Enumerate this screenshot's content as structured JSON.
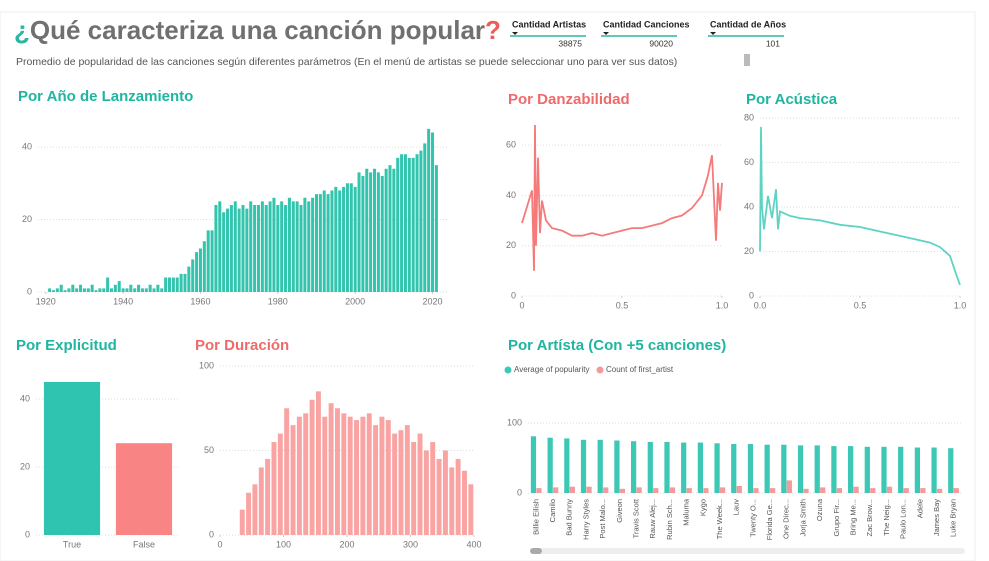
{
  "header": {
    "title_open": "¿",
    "title": "Qué caracteriza una canción popular",
    "title_close": "?",
    "subtitle": "Promedio de popularidad de las canciones según diferentes parámetros (En el menú de artistas se puede seleccionar uno para ver sus datos)"
  },
  "kpis": [
    {
      "label": "Cantidad Artistas",
      "value": 38875
    },
    {
      "label": "Cantidad Canciones",
      "value": 90020
    },
    {
      "label": "Cantidad de Años",
      "value": 101
    }
  ],
  "chart_data": [
    {
      "type": "bar",
      "title": "Por Año de Lanzamiento",
      "title_color": "#1fb5a0",
      "color": "#33c4ae",
      "grid": true,
      "x": [
        1921,
        1922,
        1923,
        1924,
        1925,
        1926,
        1927,
        1928,
        1929,
        1930,
        1931,
        1932,
        1933,
        1934,
        1935,
        1936,
        1937,
        1938,
        1939,
        1940,
        1941,
        1942,
        1943,
        1944,
        1945,
        1946,
        1947,
        1948,
        1949,
        1950,
        1951,
        1952,
        1953,
        1954,
        1955,
        1956,
        1957,
        1958,
        1959,
        1960,
        1961,
        1962,
        1963,
        1964,
        1965,
        1966,
        1967,
        1968,
        1969,
        1970,
        1971,
        1972,
        1973,
        1974,
        1975,
        1976,
        1977,
        1978,
        1979,
        1980,
        1981,
        1982,
        1983,
        1984,
        1985,
        1986,
        1987,
        1988,
        1989,
        1990,
        1991,
        1992,
        1993,
        1994,
        1995,
        1996,
        1997,
        1998,
        1999,
        2000,
        2001,
        2002,
        2003,
        2004,
        2005,
        2006,
        2007,
        2008,
        2009,
        2010,
        2011,
        2012,
        2013,
        2014,
        2015,
        2016,
        2017,
        2018,
        2019,
        2020,
        2021
      ],
      "values": [
        1,
        0.5,
        1,
        2,
        0.5,
        1,
        2,
        1,
        2,
        1,
        1,
        2,
        0.5,
        1,
        1,
        4,
        1,
        2,
        3,
        1,
        1,
        2,
        1,
        2,
        1,
        1,
        2,
        1,
        2,
        1,
        4,
        4,
        4,
        4,
        5,
        5,
        7,
        9,
        11,
        12,
        14,
        17,
        17,
        24,
        25,
        22,
        23,
        24,
        25,
        23,
        24,
        23,
        25,
        24,
        24,
        25,
        24,
        25,
        26,
        24,
        25,
        24,
        26,
        25,
        25,
        24,
        26,
        25,
        26,
        27,
        27,
        28,
        27,
        28,
        29,
        28,
        29,
        30,
        30,
        29,
        33,
        32,
        34,
        33,
        34,
        33,
        32,
        34,
        35,
        34,
        37,
        38,
        38,
        37,
        37,
        38,
        39,
        41,
        45,
        44,
        35
      ],
      "xlim": [
        1918,
        2024
      ],
      "xticks": [
        1920,
        1940,
        1960,
        1980,
        2000,
        2020
      ],
      "ylim": [
        0,
        48
      ],
      "yticks": [
        0,
        20,
        40
      ]
    },
    {
      "type": "line",
      "title": "Por Danzabilidad",
      "title_color": "#ef6a6a",
      "color": "#f57a7a",
      "grid": true,
      "x": [
        0,
        0.05,
        0.06,
        0.065,
        0.07,
        0.08,
        0.09,
        0.1,
        0.12,
        0.15,
        0.2,
        0.25,
        0.3,
        0.35,
        0.4,
        0.45,
        0.5,
        0.55,
        0.6,
        0.65,
        0.7,
        0.75,
        0.8,
        0.85,
        0.9,
        0.93,
        0.95,
        0.97,
        0.98,
        0.99,
        1
      ],
      "values": [
        29,
        42,
        10,
        68,
        20,
        55,
        25,
        38,
        30,
        27,
        26,
        24,
        24,
        25,
        24,
        25,
        26,
        27,
        27,
        28,
        29,
        31,
        32,
        35,
        40,
        48,
        56,
        22,
        45,
        34,
        45
      ],
      "xlim": [
        0,
        1
      ],
      "xticks": [
        0,
        0.5,
        {
          "value": 1,
          "label": "1.0"
        }
      ],
      "ylim": [
        0,
        70
      ],
      "yticks": [
        0,
        20,
        40,
        60
      ]
    },
    {
      "type": "line",
      "title": "Por Acústica",
      "title_color": "#1fb5a0",
      "color": "#5fd3c3",
      "grid": true,
      "x": [
        0,
        0.005,
        0.01,
        0.02,
        0.04,
        0.06,
        0.08,
        0.09,
        0.1,
        0.15,
        0.2,
        0.3,
        0.4,
        0.5,
        0.6,
        0.7,
        0.8,
        0.85,
        0.9,
        0.95,
        0.98,
        1
      ],
      "values": [
        20,
        76,
        40,
        30,
        45,
        35,
        48,
        30,
        38,
        36,
        35,
        34,
        32,
        31,
        29,
        27,
        25,
        24,
        22,
        18,
        10,
        5
      ],
      "xlim": [
        0,
        1
      ],
      "xticks": [
        {
          "value": 0,
          "label": "0.0"
        },
        0.5,
        {
          "value": 1,
          "label": "1.0"
        }
      ],
      "ylim": [
        0,
        80
      ],
      "yticks": [
        0,
        20,
        40,
        60,
        80
      ]
    },
    {
      "type": "bar",
      "title": "Por Explicitud",
      "title_color": "#1fb5a0",
      "colors": [
        "#2ec4b0",
        "#f88484"
      ],
      "grid": true,
      "categories": [
        "True",
        "False"
      ],
      "values": [
        45,
        27
      ],
      "ylim": [
        0,
        50
      ],
      "yticks": [
        0,
        20,
        40
      ]
    },
    {
      "type": "bar",
      "title": "Por Duración",
      "title_color": "#ef6a6a",
      "color": "#f9a3a3",
      "grid": true,
      "x": [
        35,
        45,
        55,
        65,
        75,
        85,
        95,
        105,
        115,
        125,
        135,
        145,
        155,
        165,
        175,
        185,
        195,
        205,
        215,
        225,
        235,
        245,
        255,
        265,
        275,
        285,
        295,
        305,
        315,
        325,
        335,
        345,
        355,
        365,
        375,
        385,
        395
      ],
      "values": [
        15,
        25,
        30,
        40,
        45,
        55,
        60,
        75,
        65,
        70,
        72,
        80,
        85,
        70,
        78,
        75,
        72,
        70,
        68,
        70,
        72,
        65,
        70,
        68,
        60,
        62,
        65,
        55,
        60,
        50,
        55,
        45,
        50,
        40,
        45,
        38,
        30
      ],
      "xlim": [
        0,
        400
      ],
      "xticks": [
        0,
        100,
        200,
        300,
        400
      ],
      "ylim": [
        0,
        100
      ],
      "yticks": [
        0,
        50,
        100
      ]
    },
    {
      "type": "bar",
      "title": "Por Artísta (Con +5 canciones)",
      "title_color": "#1fb5a0",
      "grid": true,
      "categories": [
        "Billie Eilish",
        "Camilo",
        "Bad Bunny",
        "Harry Styles",
        "Post Malo...",
        "Giveon",
        "Travis Scott",
        "Rauw Alej...",
        "Rubin Sch...",
        "Maluma",
        "Kygo",
        "The Week...",
        "Lauv",
        "Twenty O...",
        "Florida Ge...",
        "One Direc...",
        "Jorja Smith",
        "Ozuna",
        "Grupo Fir...",
        "Bring Me...",
        "Zac Brow...",
        "The Neig...",
        "Paulo Lon...",
        "Adele",
        "James Bay",
        "Luke Bryan"
      ],
      "series": [
        {
          "name": "Average of popularity",
          "color": "#3cc8b4",
          "values": [
            81,
            79,
            78,
            76,
            76,
            75,
            74,
            73,
            73,
            72,
            72,
            71,
            70,
            70,
            69,
            69,
            68,
            68,
            67,
            67,
            66,
            66,
            66,
            65,
            65,
            64
          ]
        },
        {
          "name": "Count of first_artist",
          "color": "#f59a9a",
          "values": [
            7,
            8,
            9,
            9,
            8,
            6,
            8,
            7,
            8,
            7,
            7,
            8,
            10,
            7,
            7,
            18,
            6,
            8,
            7,
            9,
            7,
            9,
            7,
            7,
            6,
            7
          ]
        }
      ],
      "ylim": [
        0,
        110
      ],
      "yticks": [
        0,
        100
      ]
    }
  ]
}
